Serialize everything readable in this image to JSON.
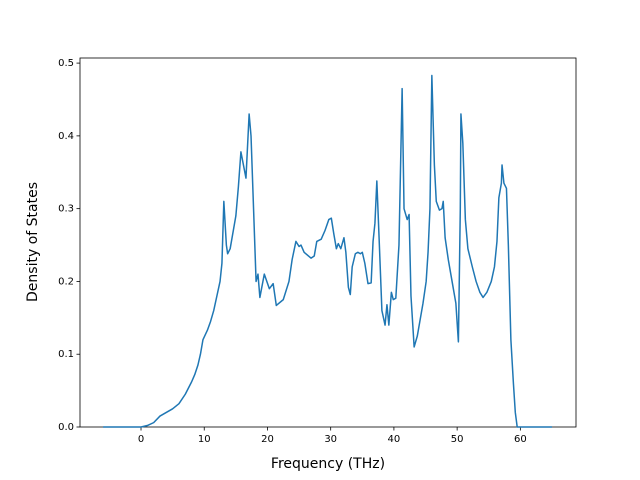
{
  "chart_data": {
    "type": "line",
    "xlabel": "Frequency (THz)",
    "ylabel": "Density of States",
    "x": [
      -6,
      0,
      1,
      2,
      3,
      4,
      5,
      6,
      7,
      8,
      8.5,
      9,
      9.4,
      9.8,
      10.5,
      11,
      11.5,
      12,
      12.5,
      12.8,
      13.1,
      13.5,
      13.7,
      14.1,
      14.6,
      15,
      15.4,
      15.8,
      16.6,
      17.1,
      17.4,
      18.2,
      18.5,
      18.8,
      19.5,
      20.3,
      20.9,
      21.4,
      22.5,
      23.4,
      23.9,
      24.5,
      25,
      25.3,
      25.8,
      26.9,
      27.4,
      27.8,
      28.5,
      29.1,
      29.7,
      30.1,
      30.5,
      30.9,
      31.2,
      31.6,
      32.1,
      32.4,
      32.8,
      33.1,
      33.4,
      33.9,
      34.3,
      34.7,
      35,
      35.4,
      35.9,
      36.4,
      36.7,
      37,
      37.3,
      37.7,
      38.1,
      38.6,
      38.9,
      39.2,
      39.6,
      39.9,
      40.3,
      40.8,
      41.3,
      41.6,
      42.1,
      42.4,
      42.7,
      43.2,
      43.7,
      44.1,
      44.6,
      45.1,
      45.4,
      45.7,
      46,
      46.4,
      46.7,
      47.2,
      47.6,
      47.8,
      48.1,
      48.6,
      49.2,
      49.8,
      50.2,
      50.5,
      50.6,
      50.9,
      51.3,
      51.7,
      52.4,
      53,
      53.6,
      54.1,
      54.7,
      55.4,
      55.9,
      56.3,
      56.6,
      57,
      57.1,
      57.4,
      57.8,
      58.1,
      58.5,
      58.9,
      59.2,
      59.5,
      65
    ],
    "series": [
      {
        "color": "#1f77b4",
        "values": [
          0,
          0,
          0.002,
          0.006,
          0.015,
          0.02,
          0.025,
          0.032,
          0.045,
          0.062,
          0.072,
          0.085,
          0.1,
          0.12,
          0.133,
          0.145,
          0.16,
          0.18,
          0.2,
          0.225,
          0.31,
          0.25,
          0.238,
          0.245,
          0.27,
          0.29,
          0.33,
          0.378,
          0.342,
          0.43,
          0.4,
          0.2,
          0.21,
          0.178,
          0.21,
          0.19,
          0.197,
          0.167,
          0.175,
          0.2,
          0.23,
          0.255,
          0.248,
          0.25,
          0.24,
          0.232,
          0.235,
          0.255,
          0.258,
          0.27,
          0.285,
          0.287,
          0.265,
          0.245,
          0.252,
          0.245,
          0.26,
          0.24,
          0.192,
          0.182,
          0.22,
          0.238,
          0.24,
          0.238,
          0.24,
          0.225,
          0.197,
          0.198,
          0.255,
          0.28,
          0.338,
          0.25,
          0.16,
          0.14,
          0.168,
          0.14,
          0.185,
          0.175,
          0.177,
          0.25,
          0.465,
          0.3,
          0.285,
          0.292,
          0.18,
          0.11,
          0.125,
          0.145,
          0.17,
          0.2,
          0.24,
          0.3,
          0.483,
          0.36,
          0.31,
          0.298,
          0.3,
          0.31,
          0.26,
          0.23,
          0.2,
          0.17,
          0.117,
          0.3,
          0.43,
          0.39,
          0.285,
          0.245,
          0.22,
          0.2,
          0.185,
          0.178,
          0.185,
          0.2,
          0.22,
          0.255,
          0.315,
          0.335,
          0.36,
          0.335,
          0.328,
          0.25,
          0.12,
          0.06,
          0.02,
          0,
          0
        ]
      }
    ],
    "xlim": [
      -9.65,
      68.8
    ],
    "ylim": [
      0,
      0.507
    ],
    "xticks": [
      0,
      10,
      20,
      30,
      40,
      50,
      60
    ],
    "yticks": [
      {
        "value": 0,
        "label": "0.0"
      },
      0.1,
      0.2,
      0.3,
      0.4,
      0.5
    ]
  }
}
